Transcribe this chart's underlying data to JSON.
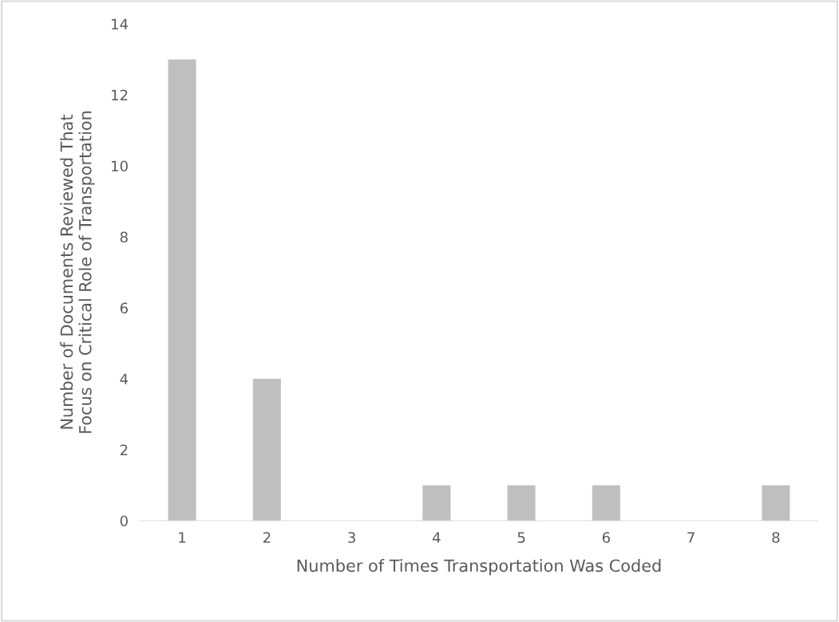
{
  "chart_data": {
    "type": "bar",
    "xlabel": "Number of Times Transportation Was Coded",
    "ylabel": "Number of Documents Reviewed That\nFocus on Critical Role of Transportation",
    "categories": [
      "1",
      "2",
      "3",
      "4",
      "5",
      "6",
      "7",
      "8"
    ],
    "values": [
      13,
      4,
      0,
      1,
      1,
      1,
      0,
      1
    ],
    "color": "#bfbfbf",
    "ylim": [
      0,
      14
    ],
    "yticks": [
      0,
      2,
      4,
      6,
      8,
      10,
      12,
      14
    ],
    "grid": false,
    "legend": false
  }
}
